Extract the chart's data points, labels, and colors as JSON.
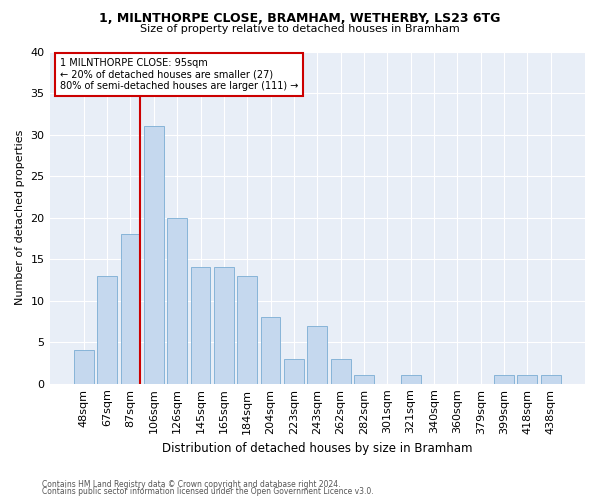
{
  "title": "1, MILNTHORPE CLOSE, BRAMHAM, WETHERBY, LS23 6TG",
  "subtitle": "Size of property relative to detached houses in Bramham",
  "xlabel": "Distribution of detached houses by size in Bramham",
  "ylabel": "Number of detached properties",
  "bar_color": "#c5d8ee",
  "bar_edge_color": "#7aadd4",
  "categories": [
    "48sqm",
    "67sqm",
    "87sqm",
    "106sqm",
    "126sqm",
    "145sqm",
    "165sqm",
    "184sqm",
    "204sqm",
    "223sqm",
    "243sqm",
    "262sqm",
    "282sqm",
    "301sqm",
    "321sqm",
    "340sqm",
    "360sqm",
    "379sqm",
    "399sqm",
    "418sqm",
    "438sqm"
  ],
  "values": [
    4,
    13,
    18,
    31,
    20,
    14,
    14,
    13,
    8,
    3,
    7,
    3,
    1,
    0,
    1,
    0,
    0,
    0,
    1,
    1,
    1
  ],
  "property_label": "1 MILNTHORPE CLOSE: 95sqm",
  "annotation_line1": "← 20% of detached houses are smaller (27)",
  "annotation_line2": "80% of semi-detached houses are larger (111) →",
  "vline_color": "#cc0000",
  "annotation_box_color": "#ffffff",
  "annotation_box_edge": "#cc0000",
  "footer1": "Contains HM Land Registry data © Crown copyright and database right 2024.",
  "footer2": "Contains public sector information licensed under the Open Government Licence v3.0.",
  "ylim": [
    0,
    40
  ],
  "yticks": [
    0,
    5,
    10,
    15,
    20,
    25,
    30,
    35,
    40
  ],
  "fig_bg": "#ffffff",
  "ax_bg": "#e8eef7",
  "grid_color": "#ffffff",
  "vline_x_index": 2.42
}
